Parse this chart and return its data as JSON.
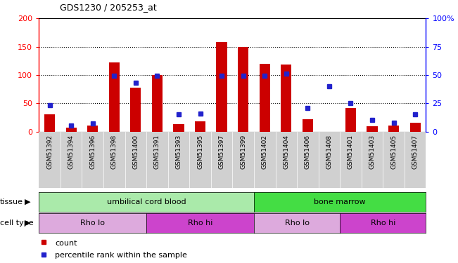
{
  "title": "GDS1230 / 205253_at",
  "samples": [
    "GSM51392",
    "GSM51394",
    "GSM51396",
    "GSM51398",
    "GSM51400",
    "GSM51391",
    "GSM51393",
    "GSM51395",
    "GSM51397",
    "GSM51399",
    "GSM51402",
    "GSM51404",
    "GSM51406",
    "GSM51408",
    "GSM51401",
    "GSM51403",
    "GSM51405",
    "GSM51407"
  ],
  "counts": [
    30,
    7,
    10,
    122,
    78,
    100,
    13,
    18,
    158,
    150,
    120,
    118,
    22,
    0,
    42,
    9,
    10,
    15
  ],
  "percentiles": [
    23,
    5,
    7,
    49,
    43,
    49,
    15,
    16,
    49,
    49,
    49,
    51,
    21,
    40,
    25,
    10,
    8,
    15
  ],
  "ylim_left": [
    0,
    200
  ],
  "ylim_right": [
    0,
    100
  ],
  "yticks_left": [
    0,
    50,
    100,
    150,
    200
  ],
  "ytick_labels_right": [
    "0",
    "25",
    "50",
    "75",
    "100%"
  ],
  "bar_color": "#cc0000",
  "dot_color": "#2222cc",
  "xticklabel_bg": "#d0d0d0",
  "tissue_groups": [
    {
      "label": "umbilical cord blood",
      "start": 0,
      "end": 10,
      "color": "#aaeaaa"
    },
    {
      "label": "bone marrow",
      "start": 10,
      "end": 18,
      "color": "#44dd44"
    }
  ],
  "cell_type_groups": [
    {
      "label": "Rho lo",
      "start": 0,
      "end": 5,
      "color": "#ddaadd"
    },
    {
      "label": "Rho hi",
      "start": 5,
      "end": 10,
      "color": "#cc44cc"
    },
    {
      "label": "Rho lo",
      "start": 10,
      "end": 14,
      "color": "#ddaadd"
    },
    {
      "label": "Rho hi",
      "start": 14,
      "end": 18,
      "color": "#cc44cc"
    }
  ],
  "legend_count_label": "count",
  "legend_pct_label": "percentile rank within the sample"
}
